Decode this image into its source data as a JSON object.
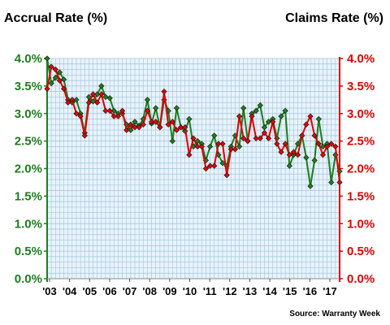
{
  "chart_data": {
    "type": "line",
    "title_left": "Accrual Rate (%)",
    "title_right": "Claims Rate (%)",
    "source": "Source: Warranty Week",
    "colors": {
      "accrual": "#1e7d1e",
      "claims": "#e00000",
      "grid": "#9fc4dc",
      "plot_bg": "#e9f3fb"
    },
    "y_left": {
      "ticks": [
        "0.0%",
        "0.5%",
        "1.0%",
        "1.5%",
        "2.0%",
        "2.5%",
        "3.0%",
        "3.5%",
        "4.0%"
      ],
      "ylim": [
        0,
        4.0
      ]
    },
    "y_right": {
      "ticks": [
        "0.0%",
        "0.5%",
        "1.0%",
        "1.5%",
        "2.0%",
        "2.5%",
        "3.0%",
        "3.5%",
        "4.0%"
      ],
      "ylim": [
        0,
        4.0
      ]
    },
    "x_ticks": [
      "'03",
      "'04",
      "'05",
      "'06",
      "'07",
      "'08",
      "'09",
      "'10",
      "'11",
      "'12",
      "'13",
      "'14",
      "'15",
      "'16",
      "'17"
    ],
    "grid": true,
    "series": [
      {
        "name": "Accrual Rate (%)",
        "key": "accrual",
        "values": [
          4.0,
          3.55,
          3.65,
          3.75,
          3.62,
          3.25,
          3.2,
          3.25,
          3.0,
          2.65,
          3.3,
          3.22,
          3.35,
          3.5,
          3.3,
          3.28,
          3.05,
          3.0,
          3.0,
          2.8,
          2.7,
          2.85,
          2.78,
          2.9,
          3.25,
          2.82,
          3.1,
          2.75,
          3.25,
          3.05,
          2.5,
          3.1,
          2.75,
          2.68,
          2.9,
          2.4,
          2.5,
          2.45,
          2.15,
          2.4,
          2.6,
          2.25,
          2.1,
          2.05,
          2.4,
          2.6,
          2.4,
          3.1,
          2.5,
          3.0,
          3.05,
          3.15,
          2.75,
          2.85,
          2.9,
          2.55,
          2.95,
          3.05,
          2.05,
          2.25,
          2.45,
          2.6,
          2.2,
          1.68,
          2.15,
          2.9,
          2.4,
          2.45,
          1.75,
          2.25,
          1.95
        ]
      },
      {
        "name": "Claims Rate (%)",
        "key": "claims",
        "values": [
          3.45,
          3.85,
          3.8,
          3.6,
          3.45,
          3.2,
          3.25,
          3.0,
          2.95,
          2.6,
          3.2,
          3.35,
          3.2,
          3.35,
          3.05,
          3.05,
          2.95,
          2.95,
          3.05,
          2.7,
          2.8,
          2.75,
          2.75,
          2.8,
          3.05,
          2.85,
          2.85,
          2.75,
          3.4,
          2.8,
          2.85,
          2.7,
          2.75,
          2.75,
          2.25,
          2.55,
          2.4,
          2.4,
          2.0,
          2.05,
          2.05,
          2.45,
          2.45,
          1.88,
          2.35,
          2.35,
          2.95,
          2.55,
          2.5,
          2.95,
          2.55,
          2.55,
          2.65,
          2.55,
          2.85,
          2.45,
          2.3,
          2.45,
          2.25,
          2.3,
          2.25,
          2.6,
          2.8,
          2.95,
          2.6,
          2.45,
          2.25,
          2.4,
          2.45,
          2.4,
          1.75
        ]
      }
    ]
  }
}
